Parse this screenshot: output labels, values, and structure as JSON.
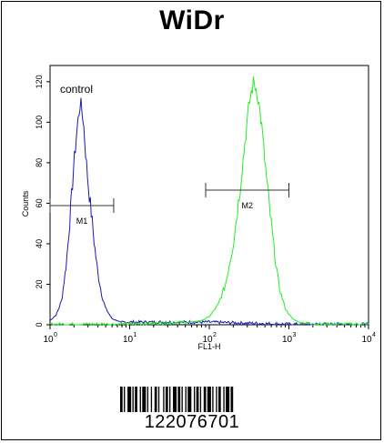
{
  "chart_data": {
    "type": "line",
    "title": "WiDr",
    "xlabel": "FL1-H",
    "ylabel": "Counts",
    "x_scale": "log",
    "xlim": [
      1,
      10000
    ],
    "ylim": [
      0,
      128
    ],
    "x_ticks": [
      1,
      10,
      100,
      1000,
      10000
    ],
    "y_ticks": [
      0,
      20,
      40,
      60,
      80,
      100,
      120
    ],
    "series": [
      {
        "name": "control",
        "color": "#1a1ab4",
        "x": [
          1.0,
          1.2,
          1.4,
          1.6,
          1.8,
          2.0,
          2.2,
          2.4,
          2.6,
          2.8,
          3.0,
          3.3,
          3.6,
          4.0,
          4.5,
          5.0,
          6.0,
          7.0,
          8.0,
          10.0,
          20.0,
          50.0,
          100.0,
          1000.0,
          10000.0
        ],
        "y": [
          2,
          5,
          12,
          30,
          55,
          80,
          98,
          110,
          102,
          85,
          70,
          55,
          40,
          25,
          14,
          8,
          3,
          2,
          1,
          1,
          1,
          1,
          1,
          0,
          0
        ]
      },
      {
        "name": "",
        "color": "#22ee22",
        "x": [
          1.0,
          10.0,
          50.0,
          80.0,
          100.0,
          130.0,
          160.0,
          200.0,
          240.0,
          280.0,
          320.0,
          360.0,
          400.0,
          450.0,
          500.0,
          580.0,
          660.0,
          760.0,
          900.0,
          1100.0,
          1400.0,
          2000.0,
          3000.0,
          10000.0
        ],
        "y": [
          0,
          0,
          1,
          2,
          4,
          10,
          20,
          40,
          65,
          90,
          110,
          120,
          115,
          100,
          80,
          55,
          35,
          18,
          8,
          3,
          1,
          0,
          0,
          0
        ]
      }
    ],
    "annotations": [
      {
        "label": "control",
        "x": 1.1,
        "y": 116
      },
      {
        "label": "M1",
        "x_range": [
          1.0,
          6.3
        ],
        "y": 59
      },
      {
        "label": "M2",
        "x_range": [
          90,
          1000
        ],
        "y": 68
      }
    ]
  },
  "barcode": {
    "number": "122076701"
  }
}
